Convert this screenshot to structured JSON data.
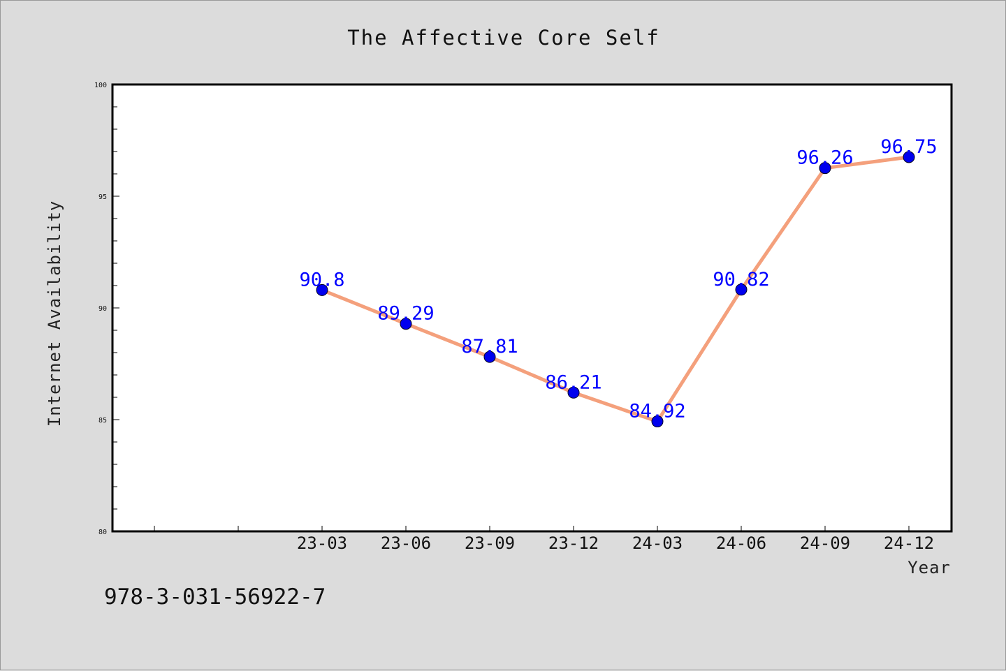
{
  "chart_data": {
    "type": "line",
    "title": "The Affective Core Self",
    "xlabel": "Year",
    "ylabel": "Internet Availability",
    "categories": [
      "23-03",
      "23-06",
      "23-09",
      "23-12",
      "24-03",
      "24-06",
      "24-09",
      "24-12"
    ],
    "series": [
      {
        "values": [
          90.8,
          89.29,
          87.81,
          86.21,
          84.92,
          90.82,
          96.26,
          96.75
        ],
        "labels": [
          "90.8",
          "89.29",
          "87.81",
          "86.21",
          "84.92",
          "90.82",
          "96.26",
          "96.75"
        ]
      }
    ],
    "ylim": [
      80,
      100
    ],
    "yticks": [
      "80",
      "85",
      "90",
      "95",
      "100"
    ],
    "grid": false,
    "line_color": "#f4a07c",
    "marker_color": "#0000ee",
    "label_color": "#0000ff"
  },
  "footer": {
    "isbn": "978-3-031-56922-7"
  }
}
